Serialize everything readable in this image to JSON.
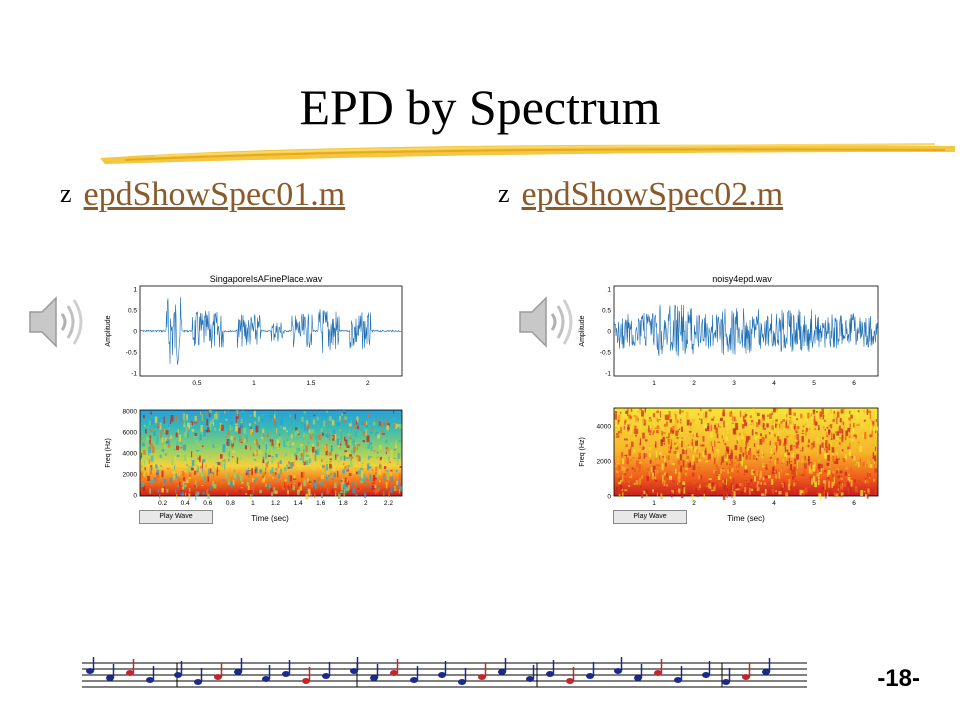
{
  "slide": {
    "title": "EPD by Spectrum",
    "page_number": "-18-"
  },
  "links": [
    {
      "label": "epdShowSpec01.m"
    },
    {
      "label": "epdShowSpec02.m"
    }
  ],
  "figures": [
    {
      "wave_title": "SingaporeIsAFinePlace.wav",
      "wave_ylabel": "Amplitude",
      "wave_yticks": [
        "1",
        "0.5",
        "0",
        "-0.5",
        "-1"
      ],
      "wave_xticks": [
        "0.5",
        "1",
        "1.5",
        "2"
      ],
      "spec_ylabel": "Freq (Hz)",
      "spec_yticks": [
        "8000",
        "6000",
        "4000",
        "2000",
        "0"
      ],
      "spec_xticks": [
        "0.2",
        "0.4",
        "0.6",
        "0.8",
        "1",
        "1.2",
        "1.4",
        "1.6",
        "1.8",
        "2",
        "2.2"
      ],
      "spec_xlabel": "Time (sec)",
      "button_label": "Play Wave"
    },
    {
      "wave_title": "noisy4epd.wav",
      "wave_ylabel": "Amplitude",
      "wave_yticks": [
        "1",
        "0.5",
        "0",
        "-0.5",
        "-1"
      ],
      "wave_xticks": [
        "1",
        "2",
        "3",
        "4",
        "5",
        "6"
      ],
      "spec_ylabel": "Freq (Hz)",
      "spec_yticks": [
        "4000",
        "2000",
        "0"
      ],
      "spec_xticks": [
        "1",
        "2",
        "3",
        "4",
        "5",
        "6"
      ],
      "spec_xlabel": "Time (sec)",
      "button_label": "Play Wave"
    }
  ],
  "icons": {
    "speaker": "speaker-icon",
    "bullet": "z-bullet-icon",
    "decoration": "music-notes-decoration"
  },
  "colors": {
    "link": "#8a5a2b",
    "wave": "#1f6fb4",
    "underline": "#f2c12e"
  }
}
